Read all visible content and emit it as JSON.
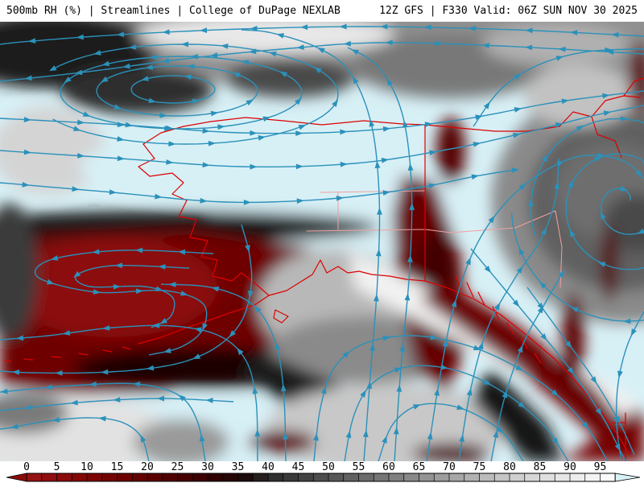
{
  "header": {
    "left": "500mb RH (%) | Streamlines | College of DuPage NEXLAB",
    "right": "12Z GFS | F330 Valid: 06Z SUN NOV 30 2025",
    "product": "500mb RH (%)",
    "overlay": "Streamlines",
    "source": "College of DuPage NEXLAB",
    "model_run": "12Z GFS",
    "forecast_hour": "F330",
    "valid_time": "06Z SUN NOV 30 2025"
  },
  "colorbar": {
    "tick_labels": [
      "0",
      "5",
      "10",
      "15",
      "20",
      "25",
      "30",
      "35",
      "40",
      "45",
      "50",
      "55",
      "60",
      "65",
      "70",
      "75",
      "80",
      "85",
      "90",
      "95"
    ],
    "stop_colors": [
      "#941212",
      "#8b0a0a",
      "#7d0404",
      "#6d0101",
      "#5a0000",
      "#460000",
      "#310000",
      "#1d0b0b",
      "#2f2f2f",
      "#434343",
      "#575757",
      "#6b6b6b",
      "#7f7f7f",
      "#939393",
      "#a7a7a7",
      "#bbbbbb",
      "#cfcfcf",
      "#dfdfdf",
      "#ededed",
      "#fafafa"
    ],
    "underflow_color": "#8a0b0b",
    "overflow_color": "#d8f1f6",
    "divider_color": "#000000",
    "label_color": "#000000"
  },
  "map_style": {
    "background_color": "#d7f0f6",
    "streamline_color": "#2b91ba",
    "coastline_color": "#dd0000",
    "internal_border_color": "#f0a0a0",
    "low_rh_color": "#6e0404",
    "high_rh_color": "#fafafa"
  }
}
